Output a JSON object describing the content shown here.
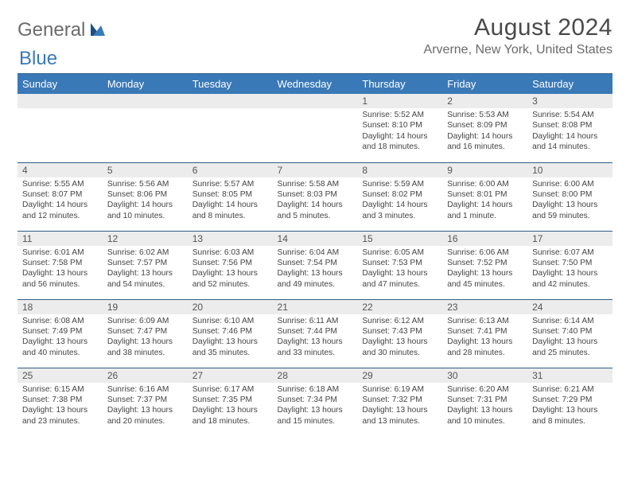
{
  "brand": {
    "general": "General",
    "blue": "Blue"
  },
  "header": {
    "month": "August 2024",
    "location": "Arverne, New York, United States"
  },
  "weekdays": [
    "Sunday",
    "Monday",
    "Tuesday",
    "Wednesday",
    "Thursday",
    "Friday",
    "Saturday"
  ],
  "colors": {
    "header_bg": "#3a79b7",
    "header_text": "#ffffff",
    "rule": "#2f5d8c",
    "daynum_bg": "#ececec",
    "text": "#444444"
  },
  "layout": {
    "first_weekday_index": 4,
    "rows": 5,
    "cols": 7
  },
  "days": [
    {
      "n": "1",
      "sunrise": "Sunrise: 5:52 AM",
      "sunset": "Sunset: 8:10 PM",
      "daylight": "Daylight: 14 hours and 18 minutes."
    },
    {
      "n": "2",
      "sunrise": "Sunrise: 5:53 AM",
      "sunset": "Sunset: 8:09 PM",
      "daylight": "Daylight: 14 hours and 16 minutes."
    },
    {
      "n": "3",
      "sunrise": "Sunrise: 5:54 AM",
      "sunset": "Sunset: 8:08 PM",
      "daylight": "Daylight: 14 hours and 14 minutes."
    },
    {
      "n": "4",
      "sunrise": "Sunrise: 5:55 AM",
      "sunset": "Sunset: 8:07 PM",
      "daylight": "Daylight: 14 hours and 12 minutes."
    },
    {
      "n": "5",
      "sunrise": "Sunrise: 5:56 AM",
      "sunset": "Sunset: 8:06 PM",
      "daylight": "Daylight: 14 hours and 10 minutes."
    },
    {
      "n": "6",
      "sunrise": "Sunrise: 5:57 AM",
      "sunset": "Sunset: 8:05 PM",
      "daylight": "Daylight: 14 hours and 8 minutes."
    },
    {
      "n": "7",
      "sunrise": "Sunrise: 5:58 AM",
      "sunset": "Sunset: 8:03 PM",
      "daylight": "Daylight: 14 hours and 5 minutes."
    },
    {
      "n": "8",
      "sunrise": "Sunrise: 5:59 AM",
      "sunset": "Sunset: 8:02 PM",
      "daylight": "Daylight: 14 hours and 3 minutes."
    },
    {
      "n": "9",
      "sunrise": "Sunrise: 6:00 AM",
      "sunset": "Sunset: 8:01 PM",
      "daylight": "Daylight: 14 hours and 1 minute."
    },
    {
      "n": "10",
      "sunrise": "Sunrise: 6:00 AM",
      "sunset": "Sunset: 8:00 PM",
      "daylight": "Daylight: 13 hours and 59 minutes."
    },
    {
      "n": "11",
      "sunrise": "Sunrise: 6:01 AM",
      "sunset": "Sunset: 7:58 PM",
      "daylight": "Daylight: 13 hours and 56 minutes."
    },
    {
      "n": "12",
      "sunrise": "Sunrise: 6:02 AM",
      "sunset": "Sunset: 7:57 PM",
      "daylight": "Daylight: 13 hours and 54 minutes."
    },
    {
      "n": "13",
      "sunrise": "Sunrise: 6:03 AM",
      "sunset": "Sunset: 7:56 PM",
      "daylight": "Daylight: 13 hours and 52 minutes."
    },
    {
      "n": "14",
      "sunrise": "Sunrise: 6:04 AM",
      "sunset": "Sunset: 7:54 PM",
      "daylight": "Daylight: 13 hours and 49 minutes."
    },
    {
      "n": "15",
      "sunrise": "Sunrise: 6:05 AM",
      "sunset": "Sunset: 7:53 PM",
      "daylight": "Daylight: 13 hours and 47 minutes."
    },
    {
      "n": "16",
      "sunrise": "Sunrise: 6:06 AM",
      "sunset": "Sunset: 7:52 PM",
      "daylight": "Daylight: 13 hours and 45 minutes."
    },
    {
      "n": "17",
      "sunrise": "Sunrise: 6:07 AM",
      "sunset": "Sunset: 7:50 PM",
      "daylight": "Daylight: 13 hours and 42 minutes."
    },
    {
      "n": "18",
      "sunrise": "Sunrise: 6:08 AM",
      "sunset": "Sunset: 7:49 PM",
      "daylight": "Daylight: 13 hours and 40 minutes."
    },
    {
      "n": "19",
      "sunrise": "Sunrise: 6:09 AM",
      "sunset": "Sunset: 7:47 PM",
      "daylight": "Daylight: 13 hours and 38 minutes."
    },
    {
      "n": "20",
      "sunrise": "Sunrise: 6:10 AM",
      "sunset": "Sunset: 7:46 PM",
      "daylight": "Daylight: 13 hours and 35 minutes."
    },
    {
      "n": "21",
      "sunrise": "Sunrise: 6:11 AM",
      "sunset": "Sunset: 7:44 PM",
      "daylight": "Daylight: 13 hours and 33 minutes."
    },
    {
      "n": "22",
      "sunrise": "Sunrise: 6:12 AM",
      "sunset": "Sunset: 7:43 PM",
      "daylight": "Daylight: 13 hours and 30 minutes."
    },
    {
      "n": "23",
      "sunrise": "Sunrise: 6:13 AM",
      "sunset": "Sunset: 7:41 PM",
      "daylight": "Daylight: 13 hours and 28 minutes."
    },
    {
      "n": "24",
      "sunrise": "Sunrise: 6:14 AM",
      "sunset": "Sunset: 7:40 PM",
      "daylight": "Daylight: 13 hours and 25 minutes."
    },
    {
      "n": "25",
      "sunrise": "Sunrise: 6:15 AM",
      "sunset": "Sunset: 7:38 PM",
      "daylight": "Daylight: 13 hours and 23 minutes."
    },
    {
      "n": "26",
      "sunrise": "Sunrise: 6:16 AM",
      "sunset": "Sunset: 7:37 PM",
      "daylight": "Daylight: 13 hours and 20 minutes."
    },
    {
      "n": "27",
      "sunrise": "Sunrise: 6:17 AM",
      "sunset": "Sunset: 7:35 PM",
      "daylight": "Daylight: 13 hours and 18 minutes."
    },
    {
      "n": "28",
      "sunrise": "Sunrise: 6:18 AM",
      "sunset": "Sunset: 7:34 PM",
      "daylight": "Daylight: 13 hours and 15 minutes."
    },
    {
      "n": "29",
      "sunrise": "Sunrise: 6:19 AM",
      "sunset": "Sunset: 7:32 PM",
      "daylight": "Daylight: 13 hours and 13 minutes."
    },
    {
      "n": "30",
      "sunrise": "Sunrise: 6:20 AM",
      "sunset": "Sunset: 7:31 PM",
      "daylight": "Daylight: 13 hours and 10 minutes."
    },
    {
      "n": "31",
      "sunrise": "Sunrise: 6:21 AM",
      "sunset": "Sunset: 7:29 PM",
      "daylight": "Daylight: 13 hours and 8 minutes."
    }
  ]
}
